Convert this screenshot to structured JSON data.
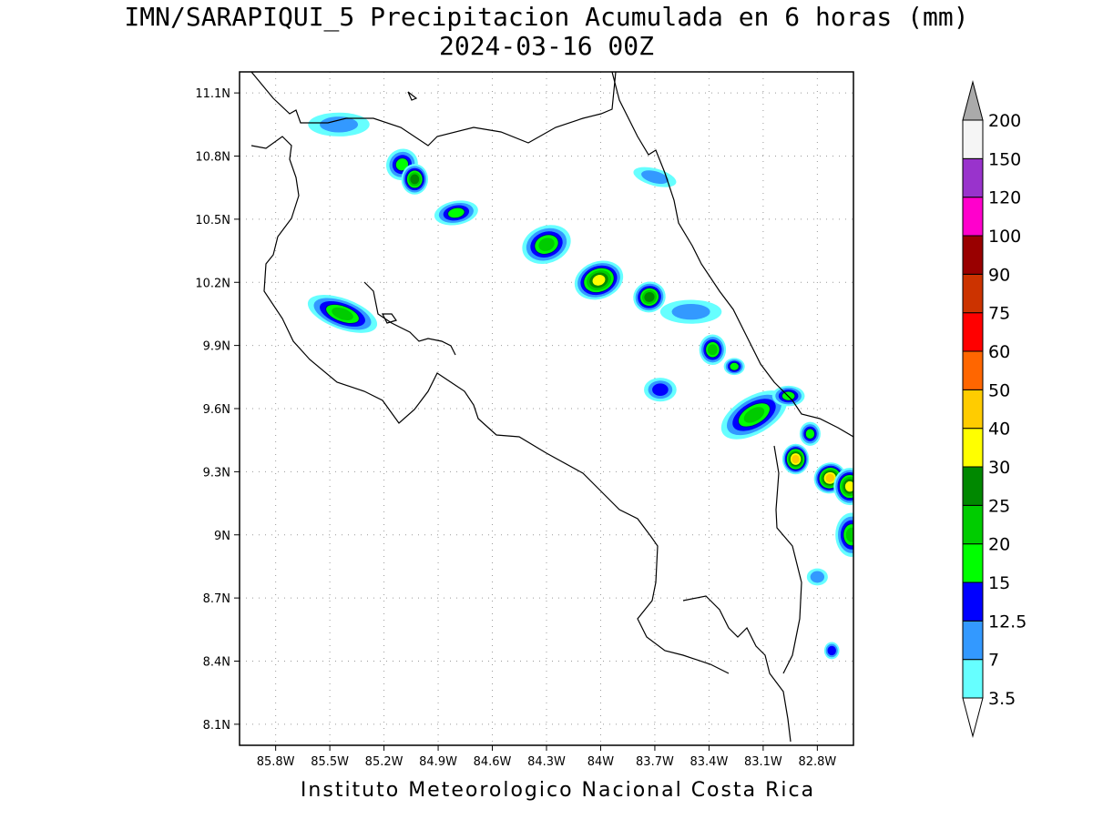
{
  "title": {
    "line1": "IMN/SARAPIQUI_5 Precipitacion Acumulada en 6 horas (mm)",
    "line2": "2024-03-16 00Z"
  },
  "footer": "Instituto Meteorologico Nacional Costa Rica",
  "map": {
    "lon_range": [
      -86.0,
      -82.6
    ],
    "lat_range": [
      8.0,
      11.2
    ],
    "lon_ticks": [
      {
        "value": -85.8,
        "label": "85.8W"
      },
      {
        "value": -85.5,
        "label": "85.5W"
      },
      {
        "value": -85.2,
        "label": "85.2W"
      },
      {
        "value": -84.9,
        "label": "84.9W"
      },
      {
        "value": -84.6,
        "label": "84.6W"
      },
      {
        "value": -84.3,
        "label": "84.3W"
      },
      {
        "value": -84.0,
        "label": "84W"
      },
      {
        "value": -83.7,
        "label": "83.7W"
      },
      {
        "value": -83.4,
        "label": "83.4W"
      },
      {
        "value": -83.1,
        "label": "83.1W"
      },
      {
        "value": -82.8,
        "label": "82.8W"
      }
    ],
    "lat_ticks": [
      {
        "value": 11.1,
        "label": "11.1N"
      },
      {
        "value": 10.8,
        "label": "10.8N"
      },
      {
        "value": 10.5,
        "label": "10.5N"
      },
      {
        "value": 10.2,
        "label": "10.2N"
      },
      {
        "value": 9.9,
        "label": "9.9N"
      },
      {
        "value": 9.6,
        "label": "9.6N"
      },
      {
        "value": 9.3,
        "label": "9.3N"
      },
      {
        "value": 9.0,
        "label": "9N"
      },
      {
        "value": 8.7,
        "label": "8.7N"
      },
      {
        "value": 8.4,
        "label": "8.4N"
      },
      {
        "value": 8.1,
        "label": "8.1N"
      }
    ],
    "grid": true
  },
  "colorbar": {
    "levels": [
      "3.5",
      "7",
      "12.5",
      "15",
      "20",
      "25",
      "30",
      "40",
      "50",
      "60",
      "75",
      "90",
      "100",
      "120",
      "150",
      "200"
    ],
    "colors": [
      "#66ffff",
      "#3399ff",
      "#0000ff",
      "#00ff00",
      "#00cc00",
      "#008800",
      "#ffff00",
      "#ffcc00",
      "#ff6600",
      "#ff0000",
      "#cc3300",
      "#990000",
      "#ff00cc",
      "#9933cc",
      "#f5f5f5",
      "#aaaaaa"
    ]
  },
  "precip_cells": [
    {
      "lon": -85.45,
      "lat": 10.95,
      "rx": 0.1,
      "ry": 0.03,
      "rot": 0,
      "level": 1
    },
    {
      "lon": -85.1,
      "lat": 10.76,
      "rx": 0.05,
      "ry": 0.04,
      "rot": 40,
      "level": 3
    },
    {
      "lon": -85.03,
      "lat": 10.69,
      "rx": 0.04,
      "ry": 0.04,
      "rot": 0,
      "level": 5
    },
    {
      "lon": -84.8,
      "lat": 10.53,
      "rx": 0.07,
      "ry": 0.03,
      "rot": 10,
      "level": 3
    },
    {
      "lon": -84.3,
      "lat": 10.38,
      "rx": 0.08,
      "ry": 0.05,
      "rot": 20,
      "level": 4
    },
    {
      "lon": -84.01,
      "lat": 10.21,
      "rx": 0.08,
      "ry": 0.05,
      "rot": 20,
      "level": 6
    },
    {
      "lon": -83.73,
      "lat": 10.13,
      "rx": 0.05,
      "ry": 0.04,
      "rot": 20,
      "level": 5
    },
    {
      "lon": -83.38,
      "lat": 9.88,
      "rx": 0.04,
      "ry": 0.04,
      "rot": 0,
      "level": 4
    },
    {
      "lon": -83.26,
      "lat": 9.8,
      "rx": 0.03,
      "ry": 0.02,
      "rot": 0,
      "level": 3
    },
    {
      "lon": -83.15,
      "lat": 9.57,
      "rx": 0.12,
      "ry": 0.05,
      "rot": 30,
      "level": 4
    },
    {
      "lon": -82.96,
      "lat": 9.66,
      "rx": 0.05,
      "ry": 0.025,
      "rot": 0,
      "level": 3
    },
    {
      "lon": -82.92,
      "lat": 9.36,
      "rx": 0.04,
      "ry": 0.04,
      "rot": 0,
      "level": 7
    },
    {
      "lon": -82.84,
      "lat": 9.48,
      "rx": 0.03,
      "ry": 0.03,
      "rot": 0,
      "level": 3
    },
    {
      "lon": -82.73,
      "lat": 9.27,
      "rx": 0.05,
      "ry": 0.04,
      "rot": 30,
      "level": 7
    },
    {
      "lon": -82.62,
      "lat": 9.23,
      "rx": 0.05,
      "ry": 0.05,
      "rot": 0,
      "level": 6
    },
    {
      "lon": -82.61,
      "lat": 9.0,
      "rx": 0.05,
      "ry": 0.06,
      "rot": 0,
      "level": 4
    },
    {
      "lon": -85.43,
      "lat": 10.05,
      "rx": 0.12,
      "ry": 0.04,
      "rot": -20,
      "level": 4
    },
    {
      "lon": -83.67,
      "lat": 9.69,
      "rx": 0.05,
      "ry": 0.03,
      "rot": 0,
      "level": 2
    },
    {
      "lon": -83.5,
      "lat": 10.06,
      "rx": 0.1,
      "ry": 0.03,
      "rot": 0,
      "level": 1
    },
    {
      "lon": -83.7,
      "lat": 10.7,
      "rx": 0.07,
      "ry": 0.02,
      "rot": -15,
      "level": 1
    },
    {
      "lon": -82.8,
      "lat": 8.8,
      "rx": 0.03,
      "ry": 0.02,
      "rot": 0,
      "level": 1
    },
    {
      "lon": -82.72,
      "lat": 8.45,
      "rx": 0.02,
      "ry": 0.02,
      "rot": 0,
      "level": 2
    }
  ]
}
